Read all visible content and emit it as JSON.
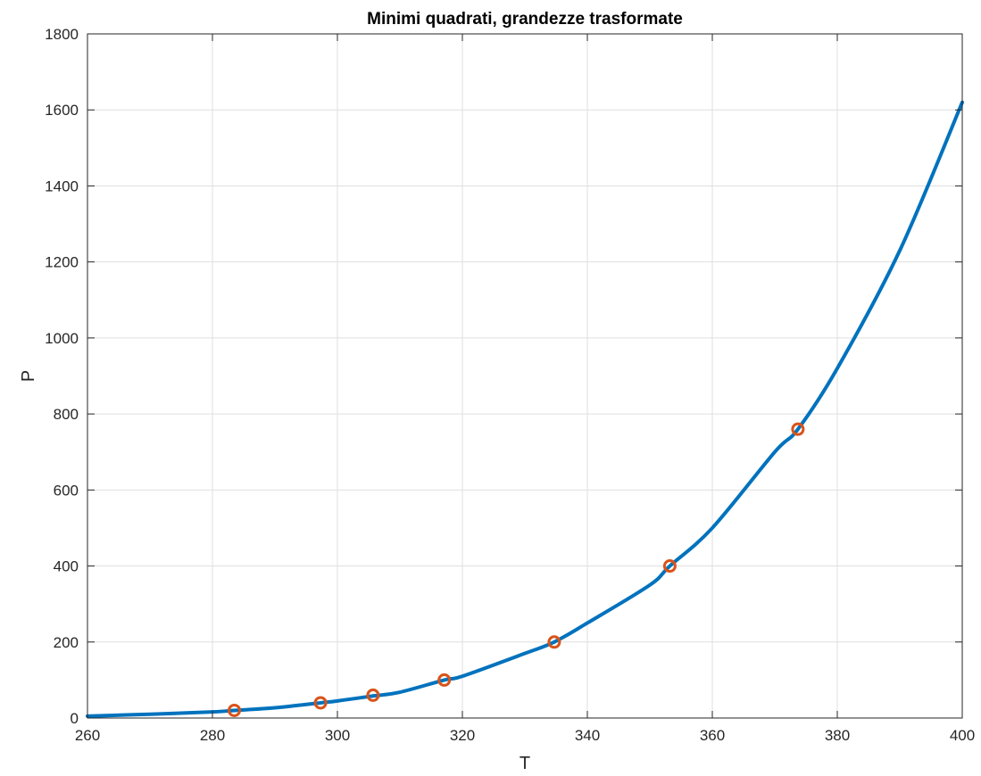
{
  "chart_data": {
    "type": "line",
    "title": "Minimi quadrati, grandezze trasformate",
    "xlabel": "T",
    "ylabel": "P",
    "xlim": [
      260,
      400
    ],
    "ylim": [
      0,
      1800
    ],
    "x_ticks": [
      260,
      280,
      300,
      320,
      340,
      360,
      380,
      400
    ],
    "y_ticks": [
      0,
      200,
      400,
      600,
      800,
      1000,
      1200,
      1400,
      1600,
      1800
    ],
    "x_tick_labels": [
      "260",
      "280",
      "300",
      "320",
      "340",
      "360",
      "380",
      "400"
    ],
    "y_tick_labels": [
      "0",
      "200",
      "400",
      "600",
      "800",
      "1000",
      "1200",
      "1400",
      "1600",
      "1800"
    ],
    "grid": true,
    "series": [
      {
        "kind": "line",
        "color": "#0072BD",
        "x": [
          260,
          270,
          280,
          283.5,
          290,
          297.3,
          300,
          305.7,
          310,
          317.1,
          320,
          330,
          334.7,
          340,
          350,
          353.2,
          360,
          370,
          373.7,
          380,
          390,
          400
        ],
        "y": [
          5,
          10,
          16,
          20,
          27,
          40,
          45,
          58,
          68,
          100,
          110,
          170,
          200,
          250,
          350,
          400,
          500,
          700,
          760,
          920,
          1230,
          1620
        ]
      },
      {
        "kind": "scatter",
        "marker": "circle",
        "color": "#D95319",
        "x": [
          283.5,
          297.3,
          305.7,
          317.1,
          334.7,
          353.2,
          373.7
        ],
        "y": [
          20,
          40,
          60,
          100,
          200,
          400,
          760
        ]
      }
    ]
  }
}
